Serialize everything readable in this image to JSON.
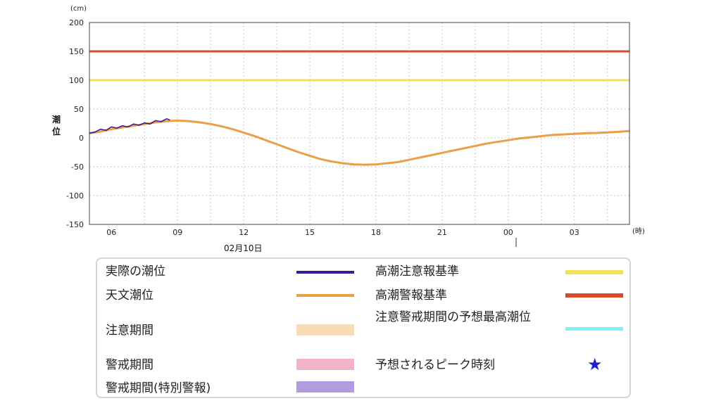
{
  "chart_data": {
    "type": "line",
    "y_unit": "(cm)",
    "x_unit": "(時)",
    "ylabel": "潮位",
    "date_label": "02月10日",
    "ylim": [
      -150,
      200
    ],
    "yticks": [
      -150,
      -100,
      -50,
      0,
      50,
      100,
      150,
      200
    ],
    "xlim_hours": [
      5,
      29.5
    ],
    "xticks": [
      {
        "hour": 6,
        "label": "06"
      },
      {
        "hour": 9,
        "label": "09"
      },
      {
        "hour": 12,
        "label": "12"
      },
      {
        "hour": 15,
        "label": "15"
      },
      {
        "hour": 18,
        "label": "18"
      },
      {
        "hour": 21,
        "label": "21"
      },
      {
        "hour": 24,
        "label": "00"
      },
      {
        "hour": 27,
        "label": "03"
      }
    ],
    "grid": true,
    "thresholds": [
      {
        "name": "高潮注意報基準",
        "value": 100,
        "color": "#f2e05a"
      },
      {
        "name": "高潮警報基準",
        "value": 150,
        "color": "#dc4a2c"
      }
    ],
    "series": [
      {
        "name": "天文潮位",
        "color": "#ec9f44",
        "x": [
          5,
          5.5,
          6,
          6.5,
          7,
          7.5,
          8,
          8.5,
          9,
          9.5,
          10,
          10.5,
          11,
          11.5,
          12,
          12.5,
          13,
          13.5,
          14,
          14.5,
          15,
          15.5,
          16,
          16.5,
          17,
          17.5,
          18,
          18.5,
          19,
          19.5,
          20,
          20.5,
          21,
          21.5,
          22,
          22.5,
          23,
          23.5,
          24,
          24.5,
          25,
          25.5,
          26,
          26.5,
          27,
          27.5,
          28,
          28.5,
          29,
          29.5
        ],
        "values": [
          8,
          11,
          15,
          18,
          21,
          24,
          27,
          29,
          30,
          29,
          27,
          24,
          20,
          15,
          9,
          3,
          -4,
          -11,
          -18,
          -25,
          -31,
          -37,
          -41,
          -44,
          -46,
          -46.5,
          -46,
          -44,
          -42,
          -38,
          -34,
          -30,
          -26,
          -22,
          -18,
          -14,
          -10,
          -7,
          -4,
          -1,
          1,
          3,
          5,
          6,
          7,
          8,
          8.5,
          9.5,
          10.5,
          12
        ]
      },
      {
        "name": "実際の潮位",
        "color": "#3a1a96",
        "x": [
          5,
          5.25,
          5.5,
          5.75,
          6,
          6.25,
          6.5,
          6.75,
          7,
          7.25,
          7.5,
          7.75,
          8,
          8.25,
          8.5,
          8.65
        ],
        "values": [
          8,
          10,
          15,
          13,
          19,
          17,
          21,
          19,
          24,
          22,
          26,
          24,
          30,
          28,
          33,
          31
        ]
      }
    ]
  },
  "legend": {
    "items": [
      {
        "label": "実際の潮位",
        "kind": "line",
        "color": "#3a1a96"
      },
      {
        "label": "天文潮位",
        "kind": "line",
        "color": "#ec9f44"
      },
      {
        "label": "注意期間",
        "kind": "band",
        "color": "#f8dcb4"
      },
      {
        "label": "警戒期間",
        "kind": "band",
        "color": "#f2b3c8"
      },
      {
        "label": "警戒期間(特別警報)",
        "kind": "band",
        "color": "#b49be0"
      },
      {
        "label": "高潮注意報基準",
        "kind": "line",
        "color": "#f2e05a"
      },
      {
        "label": "高潮警報基準",
        "kind": "line",
        "color": "#dc4a2c"
      },
      {
        "label": "注意警戒期間の予想最高潮位",
        "kind": "line",
        "color": "#7ff0f5"
      },
      {
        "label": "予想されるピーク時刻",
        "kind": "star",
        "color": "#1f1fd0",
        "icon": "star-icon"
      }
    ]
  }
}
